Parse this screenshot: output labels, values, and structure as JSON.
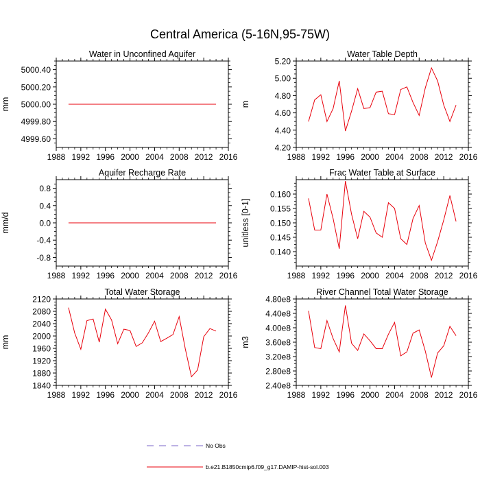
{
  "figure": {
    "title": "Central America (5-16N,95-75W)"
  },
  "legend": {
    "entries": [
      {
        "label": "No Obs",
        "style": "dashed",
        "color": "#7a64c8"
      },
      {
        "label": "b.e21.B1850cmip6.f09_g17.DAMIP-hist-sol.003",
        "style": "solid",
        "color": "#e8000b"
      }
    ]
  },
  "chart_data": [
    {
      "type": "line",
      "title": "Water in Unconfined Aquifer",
      "ylabel": "mm",
      "xlim": [
        1988,
        2016
      ],
      "ylim": [
        4999.5,
        5000.5
      ],
      "xticks": [
        1988,
        1992,
        1996,
        2000,
        2004,
        2008,
        2012,
        2016
      ],
      "yticks": [
        4999.6,
        4999.8,
        5000.0,
        5000.2,
        5000.4
      ],
      "ytick_labels": [
        "4999.60",
        "4999.80",
        "5000.00",
        "5000.20",
        "5000.40"
      ],
      "x": [
        1990,
        1991,
        1992,
        1993,
        1994,
        1995,
        1996,
        1997,
        1998,
        1999,
        2000,
        2001,
        2002,
        2003,
        2004,
        2005,
        2006,
        2007,
        2008,
        2009,
        2010,
        2011,
        2012,
        2013,
        2014
      ],
      "series": [
        {
          "color": "#e8000b",
          "values": [
            5000,
            5000,
            5000,
            5000,
            5000,
            5000,
            5000,
            5000,
            5000,
            5000,
            5000,
            5000,
            5000,
            5000,
            5000,
            5000,
            5000,
            5000,
            5000,
            5000,
            5000,
            5000,
            5000,
            5000,
            5000
          ]
        }
      ]
    },
    {
      "type": "line",
      "title": "Water Table Depth",
      "ylabel": "m",
      "xlim": [
        1988,
        2016
      ],
      "ylim": [
        4.2,
        5.2
      ],
      "xticks": [
        1988,
        1992,
        1996,
        2000,
        2004,
        2008,
        2012,
        2016
      ],
      "yticks": [
        4.2,
        4.4,
        4.6,
        4.8,
        5.0,
        5.2
      ],
      "ytick_labels": [
        "4.20",
        "4.40",
        "4.60",
        "4.80",
        "5.00",
        "5.20"
      ],
      "x": [
        1990,
        1991,
        1992,
        1993,
        1994,
        1995,
        1996,
        1997,
        1998,
        1999,
        2000,
        2001,
        2002,
        2003,
        2004,
        2005,
        2006,
        2007,
        2008,
        2009,
        2010,
        2011,
        2012,
        2013,
        2014
      ],
      "series": [
        {
          "color": "#e8000b",
          "values": [
            4.5,
            4.75,
            4.81,
            4.5,
            4.65,
            4.97,
            4.39,
            4.62,
            4.88,
            4.65,
            4.66,
            4.84,
            4.85,
            4.59,
            4.58,
            4.87,
            4.9,
            4.72,
            4.57,
            4.89,
            5.12,
            4.97,
            4.69,
            4.5,
            4.69
          ]
        }
      ]
    },
    {
      "type": "line",
      "title": "Aquifer Recharge Rate",
      "ylabel": "mm/d",
      "xlim": [
        1988,
        2016
      ],
      "ylim": [
        -1.0,
        1.0
      ],
      "xticks": [
        1988,
        1992,
        1996,
        2000,
        2004,
        2008,
        2012,
        2016
      ],
      "yticks": [
        -0.8,
        -0.4,
        0.0,
        0.4,
        0.8
      ],
      "ytick_labels": [
        "-0.8",
        "-0.4",
        "0.0",
        "0.4",
        "0.8"
      ],
      "x": [
        1990,
        1991,
        1992,
        1993,
        1994,
        1995,
        1996,
        1997,
        1998,
        1999,
        2000,
        2001,
        2002,
        2003,
        2004,
        2005,
        2006,
        2007,
        2008,
        2009,
        2010,
        2011,
        2012,
        2013,
        2014
      ],
      "series": [
        {
          "color": "#e8000b",
          "values": [
            0,
            0,
            0,
            0,
            0,
            0,
            0,
            0,
            0,
            0,
            0,
            0,
            0,
            0,
            0,
            0,
            0,
            0,
            0,
            0,
            0,
            0,
            0,
            0,
            0
          ]
        }
      ]
    },
    {
      "type": "line",
      "title": "Frac Water Table at Surface",
      "ylabel": "unitless [0-1]",
      "xlim": [
        1988,
        2016
      ],
      "ylim": [
        0.135,
        0.165
      ],
      "xticks": [
        1988,
        1992,
        1996,
        2000,
        2004,
        2008,
        2012,
        2016
      ],
      "yticks": [
        0.14,
        0.145,
        0.15,
        0.155,
        0.16
      ],
      "ytick_labels": [
        "0.140",
        "0.145",
        "0.150",
        "0.155",
        "0.160"
      ],
      "x": [
        1990,
        1991,
        1992,
        1993,
        1994,
        1995,
        1996,
        1997,
        1998,
        1999,
        2000,
        2001,
        2002,
        2003,
        2004,
        2005,
        2006,
        2007,
        2008,
        2009,
        2010,
        2011,
        2012,
        2013,
        2014
      ],
      "series": [
        {
          "color": "#e8000b",
          "values": [
            0.1585,
            0.1475,
            0.1475,
            0.16,
            0.1515,
            0.141,
            0.1645,
            0.153,
            0.1445,
            0.154,
            0.152,
            0.1465,
            0.145,
            0.157,
            0.155,
            0.1445,
            0.1425,
            0.1515,
            0.156,
            0.143,
            0.137,
            0.1435,
            0.151,
            0.1595,
            0.1505
          ]
        }
      ]
    },
    {
      "type": "line",
      "title": "Total Water Storage",
      "ylabel": "mm",
      "xlim": [
        1988,
        2016
      ],
      "ylim": [
        1840,
        2120
      ],
      "xticks": [
        1988,
        1992,
        1996,
        2000,
        2004,
        2008,
        2012,
        2016
      ],
      "yticks": [
        1840,
        1880,
        1920,
        1960,
        2000,
        2040,
        2080,
        2120
      ],
      "ytick_labels": [
        "1840",
        "1880",
        "1920",
        "1960",
        "2000",
        "2040",
        "2080",
        "2120"
      ],
      "x": [
        1990,
        1991,
        1992,
        1993,
        1994,
        1995,
        1996,
        1997,
        1998,
        1999,
        2000,
        2001,
        2002,
        2003,
        2004,
        2005,
        2006,
        2007,
        2008,
        2009,
        2010,
        2011,
        2012,
        2013,
        2014
      ],
      "series": [
        {
          "color": "#e8000b",
          "values": [
            2092,
            2010,
            1957,
            2050,
            2055,
            1980,
            2087,
            2052,
            1975,
            2022,
            2018,
            1966,
            1978,
            2010,
            2048,
            1982,
            1993,
            2005,
            2063,
            1958,
            1868,
            1890,
            1998,
            2024,
            2016
          ]
        }
      ]
    },
    {
      "type": "line",
      "title": "River Channel Total Water Storage",
      "ylabel": "m3",
      "xlim": [
        1988,
        2016
      ],
      "ylim": [
        240000000,
        480000000
      ],
      "xticks": [
        1988,
        1992,
        1996,
        2000,
        2004,
        2008,
        2012,
        2016
      ],
      "yticks": [
        240000000,
        280000000,
        320000000,
        360000000,
        400000000,
        440000000,
        480000000
      ],
      "ytick_labels": [
        "2.40e8",
        "2.80e8",
        "3.20e8",
        "3.60e8",
        "4.00e8",
        "4.40e8",
        "4.80e8"
      ],
      "x": [
        1990,
        1991,
        1992,
        1993,
        1994,
        1995,
        1996,
        1997,
        1998,
        1999,
        2000,
        2001,
        2002,
        2003,
        2004,
        2005,
        2006,
        2007,
        2008,
        2009,
        2010,
        2011,
        2012,
        2013,
        2014
      ],
      "series": [
        {
          "color": "#e8000b",
          "values": [
            447000000,
            345000000,
            342000000,
            420000000,
            370000000,
            333000000,
            462000000,
            357000000,
            337000000,
            383000000,
            364000000,
            342000000,
            342000000,
            382000000,
            415000000,
            322000000,
            333000000,
            385000000,
            394000000,
            335000000,
            262000000,
            330000000,
            350000000,
            404000000,
            378000000
          ]
        }
      ]
    }
  ]
}
